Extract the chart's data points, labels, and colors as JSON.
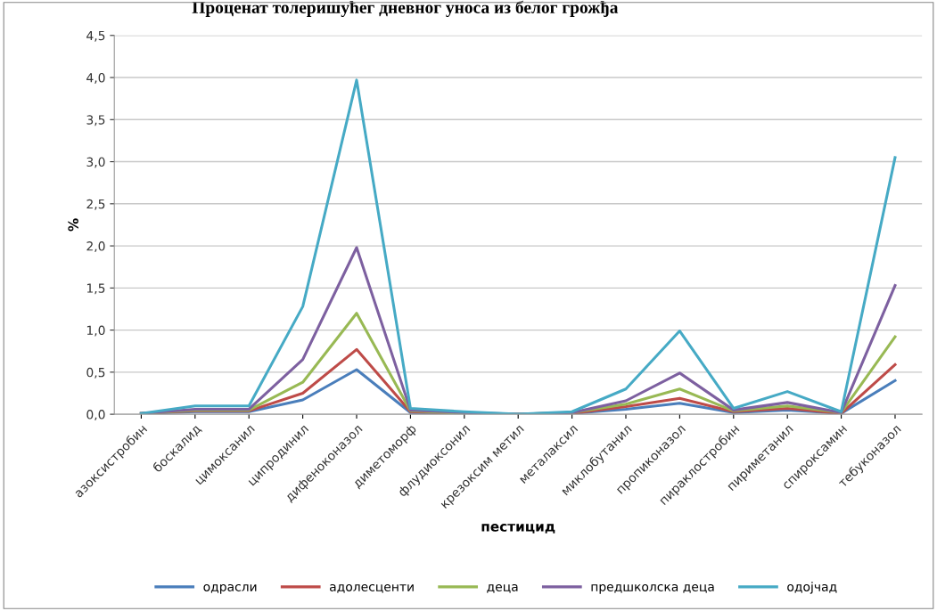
{
  "chart_data": {
    "type": "line",
    "title": "Проценат толеришућег дневног уноса из белог грожђа",
    "xlabel": "пестицид",
    "ylabel": "%",
    "categories": [
      "азоксистробин",
      "боскалид",
      "цимоксанил",
      "ципродинил",
      "дифеноконазол",
      "диметоморф",
      "флудиоксонил",
      "крезоксим метил",
      "металаксил",
      "миклобутанил",
      "пропиконазол",
      "пираклостробин",
      "пириметанил",
      "спироксамин",
      "тебуконазол"
    ],
    "series": [
      {
        "name": "одрасли",
        "color": "#4a7ebb",
        "values": [
          0.01,
          0.03,
          0.03,
          0.17,
          0.53,
          0.02,
          0.01,
          0.0,
          0.01,
          0.06,
          0.13,
          0.02,
          0.05,
          0.01,
          0.4
        ]
      },
      {
        "name": "адолесценти",
        "color": "#be4b48",
        "values": [
          0.01,
          0.04,
          0.04,
          0.25,
          0.77,
          0.03,
          0.01,
          0.0,
          0.01,
          0.09,
          0.19,
          0.03,
          0.07,
          0.01,
          0.59
        ]
      },
      {
        "name": "деца",
        "color": "#98b954",
        "values": [
          0.01,
          0.05,
          0.05,
          0.38,
          1.2,
          0.04,
          0.01,
          0.0,
          0.02,
          0.12,
          0.3,
          0.04,
          0.1,
          0.02,
          0.92
        ]
      },
      {
        "name": "предшколска деца",
        "color": "#7d60a0",
        "values": [
          0.01,
          0.06,
          0.06,
          0.65,
          1.98,
          0.05,
          0.02,
          0.0,
          0.02,
          0.16,
          0.49,
          0.05,
          0.14,
          0.02,
          1.53
        ]
      },
      {
        "name": "одојчад",
        "color": "#46aac5",
        "values": [
          0.01,
          0.1,
          0.1,
          1.28,
          3.97,
          0.07,
          0.03,
          0.0,
          0.03,
          0.3,
          0.99,
          0.07,
          0.27,
          0.03,
          3.05
        ]
      }
    ],
    "ylim": [
      0,
      4.5
    ],
    "yticks": [
      {
        "value": 0,
        "label": "0,0"
      },
      {
        "value": 0.5,
        "label": "0,5"
      },
      {
        "value": 1,
        "label": "1,0"
      },
      {
        "value": 1.5,
        "label": "1,5"
      },
      {
        "value": 2,
        "label": "2,0"
      },
      {
        "value": 2.5,
        "label": "2,5"
      },
      {
        "value": 3,
        "label": "3,0"
      },
      {
        "value": 3.5,
        "label": "3,5"
      },
      {
        "value": 4,
        "label": "4,0"
      },
      {
        "value": 4.5,
        "label": "4,5"
      }
    ],
    "grid": "y",
    "legend": "bottom",
    "marker": "none",
    "line_style": "solid"
  }
}
